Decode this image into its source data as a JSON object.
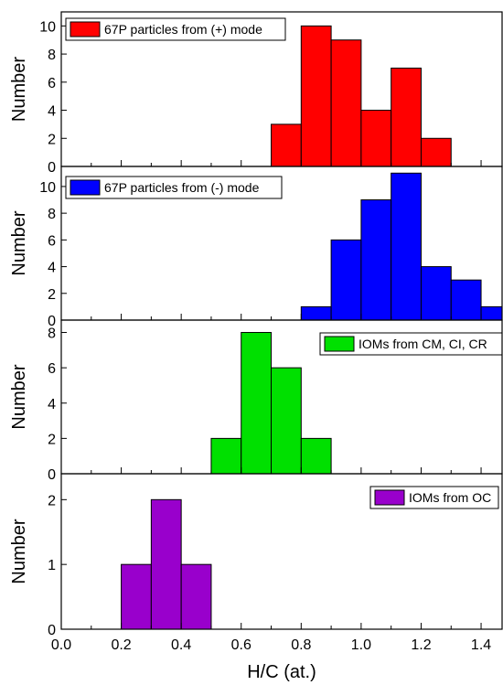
{
  "chart_data": [
    {
      "type": "bar",
      "title": "",
      "xlabel": "H/C (at.)",
      "ylabel": "Number",
      "xlim": [
        0.0,
        1.47
      ],
      "ylim": [
        0,
        11
      ],
      "yticks": [
        0,
        2,
        4,
        6,
        8,
        10
      ],
      "ytick_labels": [
        "0",
        "2",
        "4",
        "6",
        "8",
        "10"
      ],
      "legend": {
        "position": "top-left",
        "label": "67P particles from (+) mode",
        "color": "#ff0000"
      },
      "series": [
        {
          "name": "67P particles from (+) mode",
          "color": "#ff0000",
          "bin_edges": [
            0.7,
            0.8,
            0.9,
            1.0,
            1.1,
            1.2,
            1.3
          ],
          "values": [
            3,
            10,
            9,
            4,
            7,
            2
          ]
        }
      ]
    },
    {
      "type": "bar",
      "title": "",
      "xlabel": "H/C (at.)",
      "ylabel": "Number",
      "xlim": [
        0.0,
        1.47
      ],
      "ylim": [
        0,
        11.5
      ],
      "yticks": [
        0,
        2,
        4,
        6,
        8,
        10
      ],
      "ytick_labels": [
        "0",
        "2",
        "4",
        "6",
        "8",
        "10"
      ],
      "legend": {
        "position": "top-left",
        "label": "67P particles from (-) mode",
        "color": "#0000ff"
      },
      "series": [
        {
          "name": "67P particles from (-) mode",
          "color": "#0000ff",
          "bin_edges": [
            0.8,
            0.9,
            1.0,
            1.1,
            1.2,
            1.3,
            1.4,
            1.5
          ],
          "values": [
            1,
            6,
            9,
            11,
            4,
            3,
            1
          ]
        }
      ]
    },
    {
      "type": "bar",
      "title": "",
      "xlabel": "H/C (at.)",
      "ylabel": "Number",
      "xlim": [
        0.0,
        1.47
      ],
      "ylim": [
        0,
        8.7
      ],
      "yticks": [
        0,
        2,
        4,
        6,
        8
      ],
      "ytick_labels": [
        "0",
        "2",
        "4",
        "6",
        "8"
      ],
      "legend": {
        "position": "top-right",
        "label": "IOMs from CM, CI, CR",
        "color": "#00e000"
      },
      "series": [
        {
          "name": "IOMs from CM, CI, CR",
          "color": "#00e000",
          "bin_edges": [
            0.5,
            0.6,
            0.7,
            0.8,
            0.9
          ],
          "values": [
            2,
            8,
            6,
            2
          ]
        }
      ]
    },
    {
      "type": "bar",
      "title": "",
      "xlabel": "H/C (at.)",
      "ylabel": "Number",
      "xlim": [
        0.0,
        1.47
      ],
      "ylim": [
        0,
        2.4
      ],
      "yticks": [
        0,
        1,
        2
      ],
      "ytick_labels": [
        "0",
        "1",
        "2"
      ],
      "xticks": [
        0.0,
        0.2,
        0.4,
        0.6,
        0.8,
        1.0,
        1.2,
        1.4
      ],
      "xtick_labels": [
        "0.0",
        "0.2",
        "0.4",
        "0.6",
        "0.8",
        "1.0",
        "1.2",
        "1.4"
      ],
      "legend": {
        "position": "top-right",
        "label": "IOMs from OC",
        "color": "#9900cc"
      },
      "series": [
        {
          "name": "IOMs from OC",
          "color": "#9900cc",
          "bin_edges": [
            0.2,
            0.3,
            0.4,
            0.5
          ],
          "values": [
            1,
            2,
            1
          ]
        }
      ]
    }
  ]
}
